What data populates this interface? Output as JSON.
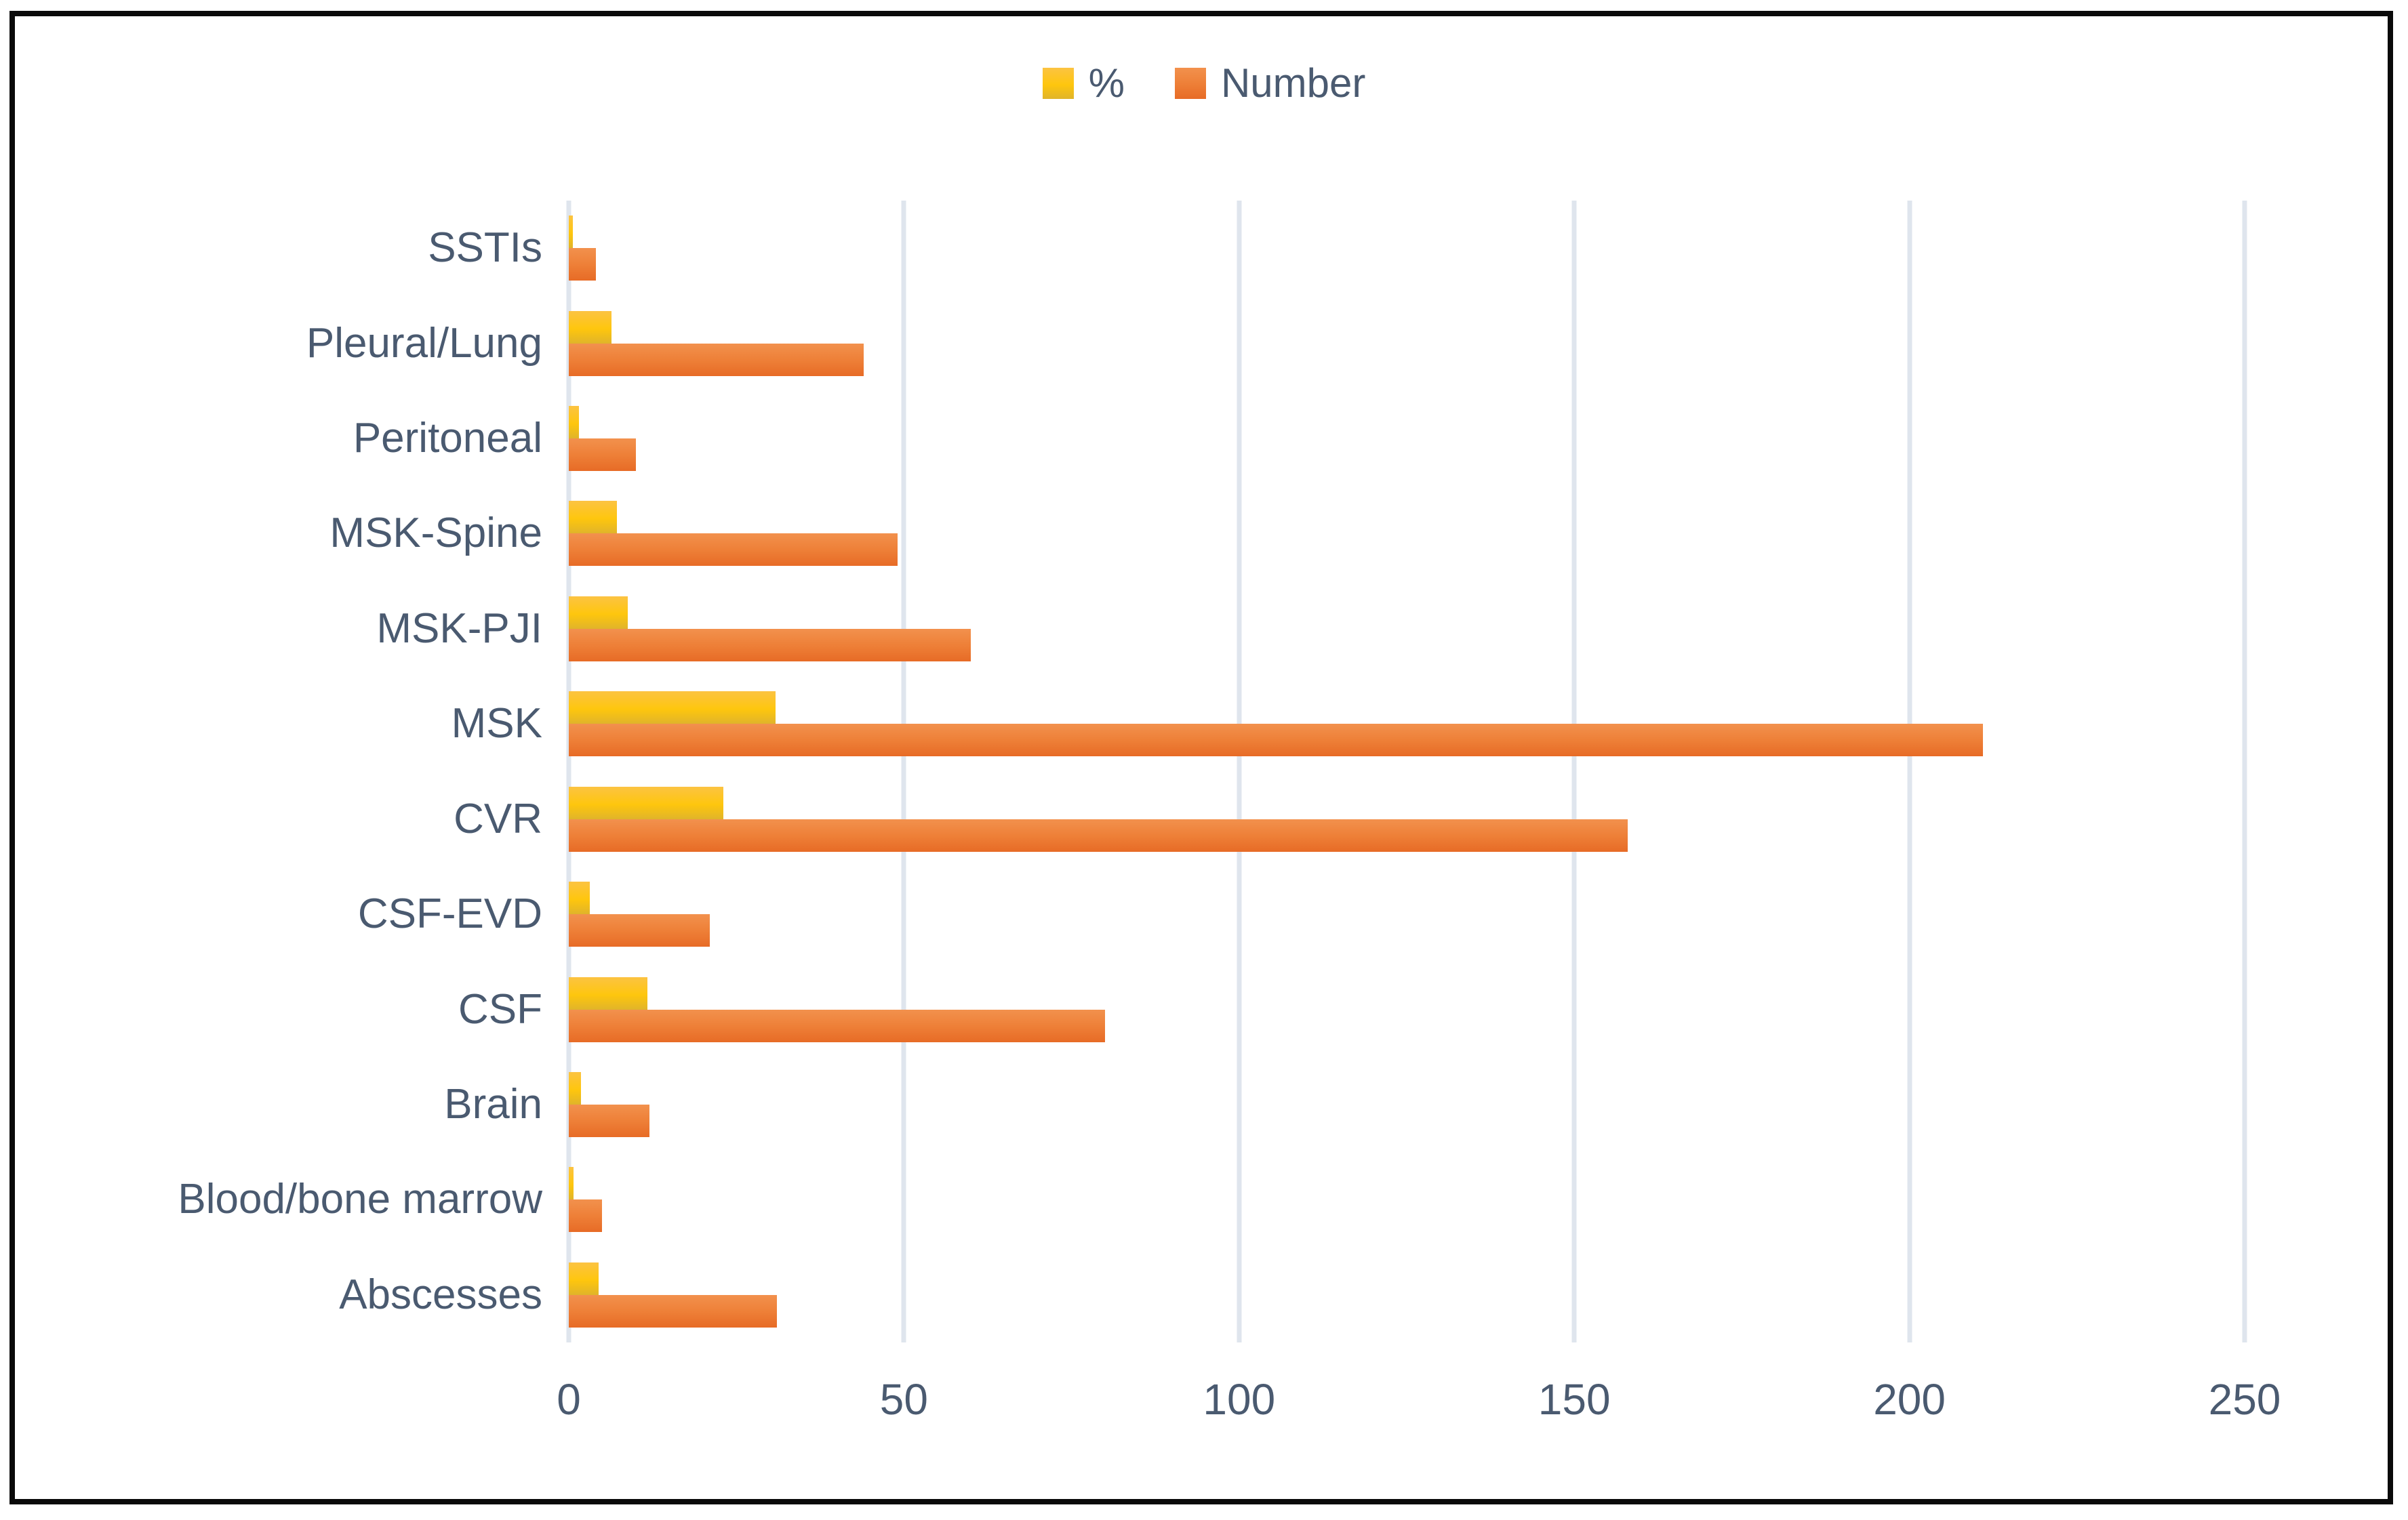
{
  "legend": {
    "pct_label": "%",
    "number_label": "Number"
  },
  "chart_data": {
    "type": "bar",
    "orientation": "horizontal",
    "title": "",
    "xlabel": "",
    "ylabel": "",
    "xlim": [
      0,
      250
    ],
    "x_ticks": [
      0,
      50,
      100,
      150,
      200,
      250
    ],
    "grid": "vertical",
    "legend_position": "top-center",
    "categories_top_to_bottom": [
      "SSTIs",
      "Pleural/Lung",
      "Peritoneal",
      "MSK-Spine",
      "MSK-PJI",
      "MSK",
      "CVR",
      "CSF-EVD",
      "CSF",
      "Brain",
      "Blood/bone marrow",
      "Abscesses"
    ],
    "series": [
      {
        "name": "%",
        "values": [
          0.6,
          6.4,
          1.5,
          7.2,
          8.8,
          30.8,
          23.1,
          3.1,
          11.7,
          1.8,
          0.7,
          4.5
        ]
      },
      {
        "name": "Number",
        "values": [
          4,
          44,
          10,
          49,
          60,
          211,
          158,
          21,
          80,
          12,
          5,
          31
        ]
      }
    ]
  },
  "colors": {
    "text": "#4a5a70",
    "grid": "#dfe5ed",
    "frame_border": "#0a0a0a",
    "pct_gradient_top": "#fcc342",
    "pct_gradient_mid": "#fec60d",
    "pct_gradient_bottom": "#e0b42a",
    "num_gradient_top": "#f2914d",
    "num_gradient_mid": "#ee8038",
    "num_gradient_bottom": "#e76b26"
  }
}
